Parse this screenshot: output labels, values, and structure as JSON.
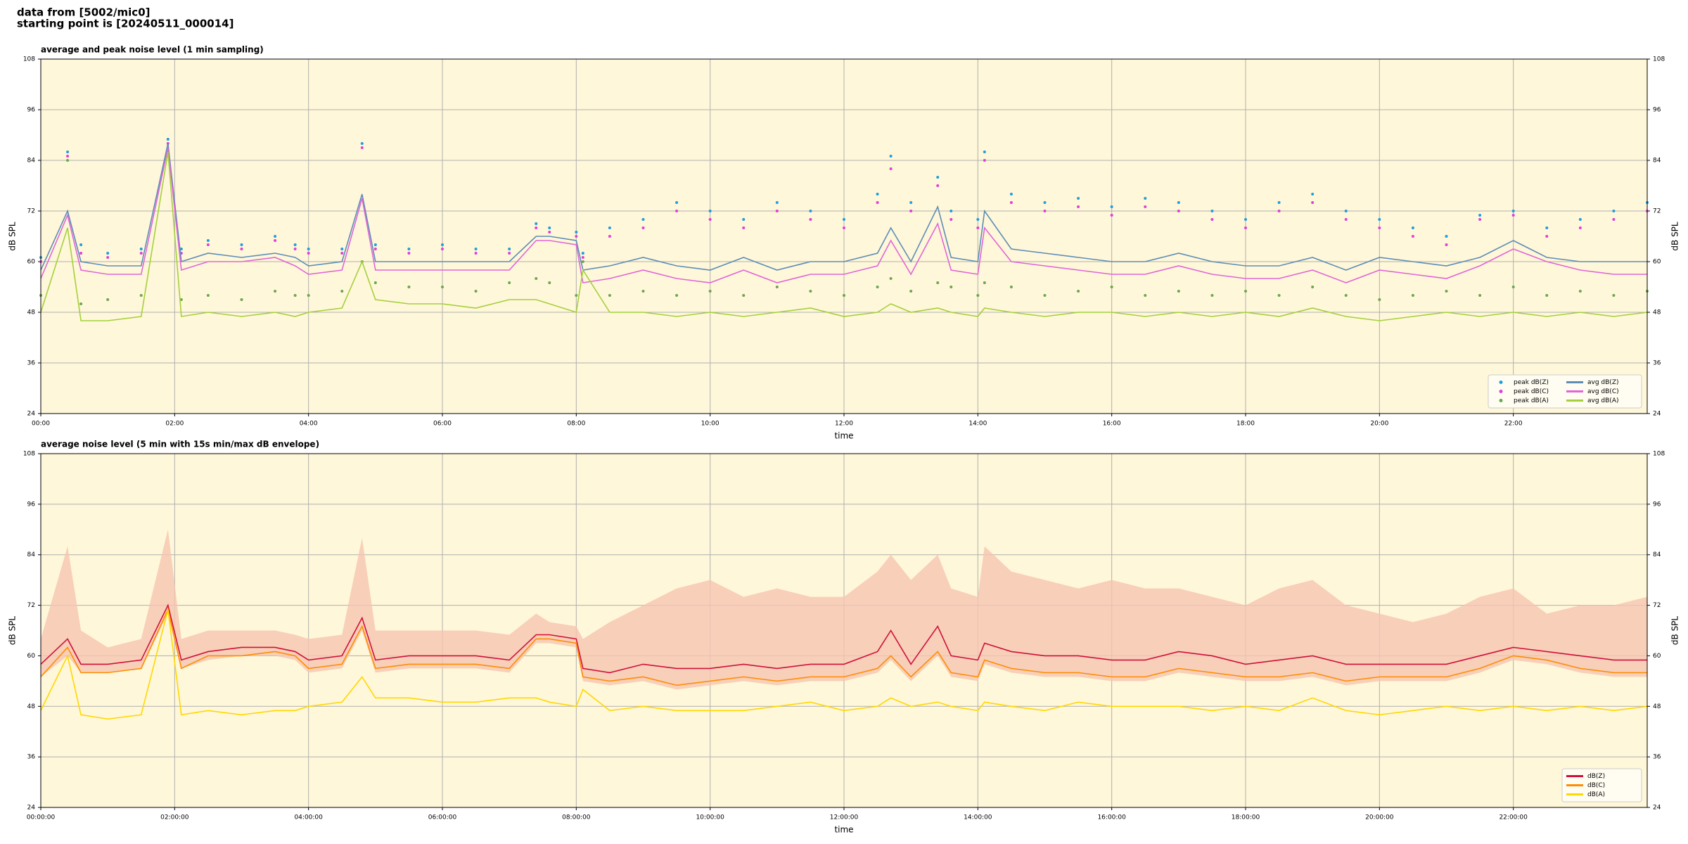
{
  "header": {
    "line1": "data from [5002/mic0]",
    "line2": "starting point is [20240511_000014]"
  },
  "chart_data": [
    {
      "type": "line",
      "title": "average and peak noise level (1 min sampling)",
      "x_label": "time",
      "y_label": "dB SPL",
      "y2_label": "dB SPL",
      "xlim": [
        0,
        24
      ],
      "ylim": [
        24,
        108
      ],
      "xticks": [
        {
          "value": 0,
          "label": "00:00"
        },
        {
          "value": 2,
          "label": "02:00"
        },
        {
          "value": 4,
          "label": "04:00"
        },
        {
          "value": 6,
          "label": "06:00"
        },
        {
          "value": 8,
          "label": "08:00"
        },
        {
          "value": 10,
          "label": "10:00"
        },
        {
          "value": 12,
          "label": "12:00"
        },
        {
          "value": 14,
          "label": "14:00"
        },
        {
          "value": 16,
          "label": "16:00"
        },
        {
          "value": 18,
          "label": "18:00"
        },
        {
          "value": 20,
          "label": "20:00"
        },
        {
          "value": 22,
          "label": "22:00"
        }
      ],
      "yticks": [
        24,
        36,
        48,
        60,
        72,
        84,
        96,
        108
      ],
      "grid": true,
      "legend": "lower right",
      "legend_ncol": 2,
      "x": [
        0,
        0.4,
        0.6,
        1,
        1.5,
        1.9,
        2.1,
        2.5,
        3,
        3.5,
        3.8,
        4,
        4.5,
        4.8,
        5,
        5.5,
        6,
        6.5,
        7,
        7.4,
        7.6,
        8,
        8.1,
        8.5,
        9,
        9.5,
        10,
        10.5,
        11,
        11.5,
        12,
        12.5,
        12.7,
        13,
        13.4,
        13.6,
        14,
        14.1,
        14.5,
        15,
        15.5,
        16,
        16.5,
        17,
        17.5,
        18,
        18.5,
        19,
        19.5,
        20,
        20.5,
        21,
        21.5,
        22,
        22.5,
        23,
        23.5,
        24
      ],
      "series": [
        {
          "name": "peak dB(Z)",
          "kind": "scatter",
          "color": "#1f9ee0",
          "values": [
            61,
            86,
            64,
            62,
            63,
            89,
            63,
            65,
            64,
            66,
            64,
            63,
            63,
            88,
            64,
            63,
            64,
            63,
            63,
            69,
            68,
            67,
            62,
            68,
            70,
            74,
            72,
            70,
            74,
            72,
            70,
            76,
            85,
            74,
            80,
            72,
            70,
            86,
            76,
            74,
            75,
            73,
            75,
            74,
            72,
            70,
            74,
            76,
            72,
            70,
            68,
            66,
            71,
            72,
            68,
            70,
            72,
            74
          ]
        },
        {
          "name": "peak dB(C)",
          "kind": "scatter",
          "color": "#e040d8",
          "values": [
            60,
            85,
            62,
            61,
            62,
            88,
            62,
            64,
            63,
            65,
            63,
            62,
            62,
            87,
            63,
            62,
            63,
            62,
            62,
            68,
            67,
            66,
            61,
            66,
            68,
            72,
            70,
            68,
            72,
            70,
            68,
            74,
            82,
            72,
            78,
            70,
            68,
            84,
            74,
            72,
            73,
            71,
            73,
            72,
            70,
            68,
            72,
            74,
            70,
            68,
            66,
            64,
            70,
            71,
            66,
            68,
            70,
            72
          ]
        },
        {
          "name": "peak dB(A)",
          "kind": "scatter",
          "color": "#6aa84f",
          "values": [
            52,
            84,
            50,
            51,
            52,
            86,
            51,
            52,
            51,
            53,
            52,
            52,
            53,
            60,
            55,
            54,
            54,
            53,
            55,
            56,
            55,
            52,
            60,
            52,
            53,
            52,
            53,
            52,
            54,
            53,
            52,
            54,
            56,
            53,
            55,
            54,
            52,
            55,
            54,
            52,
            53,
            54,
            52,
            53,
            52,
            53,
            52,
            54,
            52,
            51,
            52,
            53,
            52,
            54,
            52,
            53,
            52,
            53
          ]
        },
        {
          "name": "avg dB(Z)",
          "kind": "line",
          "color": "#5b8db8",
          "values": [
            58,
            72,
            60,
            59,
            59,
            88,
            60,
            62,
            61,
            62,
            61,
            59,
            60,
            76,
            60,
            60,
            60,
            60,
            60,
            66,
            66,
            65,
            58,
            59,
            61,
            59,
            58,
            61,
            58,
            60,
            60,
            62,
            68,
            60,
            73,
            61,
            60,
            72,
            63,
            62,
            61,
            60,
            60,
            62,
            60,
            59,
            59,
            61,
            58,
            61,
            60,
            59,
            61,
            65,
            61,
            60,
            60,
            60
          ]
        },
        {
          "name": "avg dB(C)",
          "kind": "line",
          "color": "#e066d6",
          "values": [
            56,
            71,
            58,
            57,
            57,
            87,
            58,
            60,
            60,
            61,
            59,
            57,
            58,
            75,
            58,
            58,
            58,
            58,
            58,
            65,
            65,
            64,
            55,
            56,
            58,
            56,
            55,
            58,
            55,
            57,
            57,
            59,
            65,
            57,
            69,
            58,
            57,
            68,
            60,
            59,
            58,
            57,
            57,
            59,
            57,
            56,
            56,
            58,
            55,
            58,
            57,
            56,
            59,
            63,
            60,
            58,
            57,
            57
          ]
        },
        {
          "name": "avg dB(A)",
          "kind": "line",
          "color": "#a4d03c",
          "values": [
            48,
            68,
            46,
            46,
            47,
            86,
            47,
            48,
            47,
            48,
            47,
            48,
            49,
            60,
            51,
            50,
            50,
            49,
            51,
            51,
            50,
            48,
            58,
            48,
            48,
            47,
            48,
            47,
            48,
            49,
            47,
            48,
            50,
            48,
            49,
            48,
            47,
            49,
            48,
            47,
            48,
            48,
            47,
            48,
            47,
            48,
            47,
            49,
            47,
            46,
            47,
            48,
            47,
            48,
            47,
            48,
            47,
            48
          ]
        }
      ]
    },
    {
      "type": "line",
      "title": "average noise level (5 min with 15s min/max dB envelope)",
      "x_label": "time",
      "y_label": "dB SPL",
      "y2_label": "dB SPL",
      "xlim": [
        0,
        24
      ],
      "ylim": [
        24,
        108
      ],
      "xticks": [
        {
          "value": 0,
          "label": "00:00:00"
        },
        {
          "value": 2,
          "label": "02:00:00"
        },
        {
          "value": 4,
          "label": "04:00:00"
        },
        {
          "value": 6,
          "label": "06:00:00"
        },
        {
          "value": 8,
          "label": "08:00:00"
        },
        {
          "value": 10,
          "label": "10:00:00"
        },
        {
          "value": 12,
          "label": "12:00:00"
        },
        {
          "value": 14,
          "label": "14:00:00"
        },
        {
          "value": 16,
          "label": "16:00:00"
        },
        {
          "value": 18,
          "label": "18:00:00"
        },
        {
          "value": 20,
          "label": "20:00:00"
        },
        {
          "value": 22,
          "label": "22:00:00"
        }
      ],
      "yticks": [
        24,
        36,
        48,
        60,
        72,
        84,
        96,
        108
      ],
      "grid": true,
      "legend": "lower right",
      "legend_ncol": 1,
      "x": [
        0,
        0.4,
        0.6,
        1,
        1.5,
        1.9,
        2.1,
        2.5,
        3,
        3.5,
        3.8,
        4,
        4.5,
        4.8,
        5,
        5.5,
        6,
        6.5,
        7,
        7.4,
        7.6,
        8,
        8.1,
        8.5,
        9,
        9.5,
        10,
        10.5,
        11,
        11.5,
        12,
        12.5,
        12.7,
        13,
        13.4,
        13.6,
        14,
        14.1,
        14.5,
        15,
        15.5,
        16,
        16.5,
        17,
        17.5,
        18,
        18.5,
        19,
        19.5,
        20,
        20.5,
        21,
        21.5,
        22,
        22.5,
        23,
        23.5,
        24
      ],
      "envelope": {
        "color": "#f6c4b0",
        "upper": [
          64,
          86,
          66,
          62,
          64,
          90,
          64,
          66,
          66,
          66,
          65,
          64,
          65,
          88,
          66,
          66,
          66,
          66,
          65,
          70,
          68,
          67,
          64,
          68,
          72,
          76,
          78,
          74,
          76,
          74,
          74,
          80,
          84,
          78,
          84,
          76,
          74,
          86,
          80,
          78,
          76,
          78,
          76,
          76,
          74,
          72,
          76,
          78,
          72,
          70,
          68,
          70,
          74,
          76,
          70,
          72,
          72,
          74
        ],
        "lower": [
          55,
          60,
          56,
          56,
          57,
          70,
          57,
          59,
          60,
          60,
          59,
          56,
          57,
          66,
          56,
          57,
          57,
          57,
          56,
          63,
          63,
          62,
          54,
          53,
          54,
          52,
          53,
          54,
          53,
          54,
          54,
          56,
          59,
          54,
          60,
          55,
          54,
          58,
          56,
          55,
          55,
          54,
          54,
          56,
          55,
          54,
          54,
          55,
          53,
          54,
          54,
          54,
          56,
          59,
          58,
          56,
          55,
          55
        ]
      },
      "series": [
        {
          "name": "dB(Z)",
          "kind": "line",
          "color": "#d0103a",
          "values": [
            58,
            64,
            58,
            58,
            59,
            72,
            59,
            61,
            62,
            62,
            61,
            59,
            60,
            69,
            59,
            60,
            60,
            60,
            59,
            65,
            65,
            64,
            57,
            56,
            58,
            57,
            57,
            58,
            57,
            58,
            58,
            61,
            66,
            58,
            67,
            60,
            59,
            63,
            61,
            60,
            60,
            59,
            59,
            61,
            60,
            58,
            59,
            60,
            58,
            58,
            58,
            58,
            60,
            62,
            61,
            60,
            59,
            59
          ]
        },
        {
          "name": "dB(C)",
          "kind": "line",
          "color": "#ff8c00",
          "values": [
            55,
            62,
            56,
            56,
            57,
            71,
            57,
            60,
            60,
            61,
            60,
            57,
            58,
            67,
            57,
            58,
            58,
            58,
            57,
            64,
            64,
            63,
            55,
            54,
            55,
            53,
            54,
            55,
            54,
            55,
            55,
            57,
            60,
            55,
            61,
            56,
            55,
            59,
            57,
            56,
            56,
            55,
            55,
            57,
            56,
            55,
            55,
            56,
            54,
            55,
            55,
            55,
            57,
            60,
            59,
            57,
            56,
            56
          ]
        },
        {
          "name": "dB(A)",
          "kind": "line",
          "color": "#ffd700",
          "values": [
            47,
            60,
            46,
            45,
            46,
            71,
            46,
            47,
            46,
            47,
            47,
            48,
            49,
            55,
            50,
            50,
            49,
            49,
            50,
            50,
            49,
            48,
            52,
            47,
            48,
            47,
            47,
            47,
            48,
            49,
            47,
            48,
            50,
            48,
            49,
            48,
            47,
            49,
            48,
            47,
            49,
            48,
            48,
            48,
            47,
            48,
            47,
            50,
            47,
            46,
            47,
            48,
            47,
            48,
            47,
            48,
            47,
            48
          ]
        }
      ]
    }
  ]
}
